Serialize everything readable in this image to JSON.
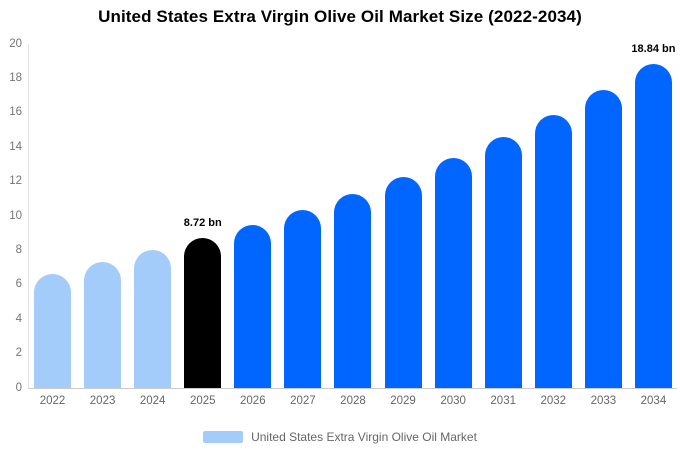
{
  "title": "United States Extra Virgin Olive Oil Market Size (2022-2034)",
  "palette": {
    "historical": "#a3ccfa",
    "highlight": "#000000",
    "forecast": "#0066ff",
    "axis_line": "#cccccc",
    "tick_text": "#757575"
  },
  "legend": {
    "label": "United States Extra Virgin Olive Oil Market",
    "swatch_color": "#a3ccfa"
  },
  "chart_data": {
    "type": "bar",
    "title": "United States Extra Virgin Olive Oil Market Size (2022-2034)",
    "categories": [
      "2022",
      "2023",
      "2024",
      "2025",
      "2026",
      "2027",
      "2028",
      "2029",
      "2030",
      "2031",
      "2032",
      "2033",
      "2034"
    ],
    "values": [
      6.6,
      7.3,
      8.0,
      8.72,
      9.5,
      10.35,
      11.27,
      12.28,
      13.38,
      14.58,
      15.88,
      17.3,
      18.84
    ],
    "unit": "bn",
    "bar_roles": [
      "historical",
      "historical",
      "historical",
      "highlight",
      "forecast",
      "forecast",
      "forecast",
      "forecast",
      "forecast",
      "forecast",
      "forecast",
      "forecast",
      "forecast"
    ],
    "annotations": [
      {
        "category": "2025",
        "text": "8.72 bn"
      },
      {
        "category": "2034",
        "text": "18.84 bn"
      }
    ],
    "xlabel": "",
    "ylabel": "",
    "ylim": [
      0,
      20
    ],
    "yticks": [
      0,
      2,
      4,
      6,
      8,
      10,
      12,
      14,
      16,
      18,
      20
    ],
    "grid": false,
    "legend_entries": [
      "United States Extra Virgin Olive Oil Market"
    ],
    "legend_position": "bottom"
  }
}
